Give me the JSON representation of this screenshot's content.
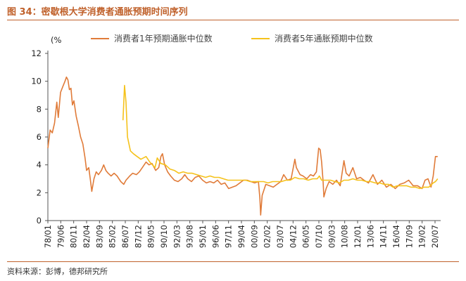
{
  "figure": {
    "title": "图 34：密歇根大学消费者通胀预期时间序列",
    "source": "资料来源：彭博，德邦研究所"
  },
  "colors": {
    "accent": "#c0612b",
    "series_1y": "#e07b39",
    "series_5y": "#f5c21b"
  },
  "chart_data": {
    "type": "line",
    "title": "",
    "ylabel": "(%",
    "ylim": [
      0,
      12
    ],
    "yticks": [
      0,
      2,
      4,
      6,
      8,
      10,
      12
    ],
    "xlim": [
      "1978-01",
      "2022-01"
    ],
    "xtick_labels": [
      "78/01",
      "79/06",
      "80/11",
      "82/04",
      "83/09",
      "85/02",
      "86/07",
      "87/12",
      "89/05",
      "90/10",
      "92/03",
      "93/08",
      "95/01",
      "96/06",
      "97/11",
      "99/04",
      "00/09",
      "02/02",
      "03/07",
      "04/12",
      "06/05",
      "07/10",
      "09/03",
      "10/08",
      "12/01",
      "13/06",
      "14/11",
      "16/04",
      "17/09",
      "19/02",
      "20/07"
    ],
    "grid": false,
    "legend_position": "top",
    "series": [
      {
        "name": "消费者1年预期通胀中位数",
        "color": "#e07b39",
        "points": [
          [
            "1978-01",
            5.2
          ],
          [
            "1978-04",
            6.5
          ],
          [
            "1978-07",
            6.3
          ],
          [
            "1978-10",
            7.0
          ],
          [
            "1979-01",
            8.5
          ],
          [
            "1979-03",
            7.4
          ],
          [
            "1979-06",
            9.2
          ],
          [
            "1979-09",
            9.6
          ],
          [
            "1979-12",
            10.0
          ],
          [
            "1980-02",
            10.3
          ],
          [
            "1980-04",
            10.1
          ],
          [
            "1980-06",
            9.4
          ],
          [
            "1980-08",
            9.5
          ],
          [
            "1980-10",
            8.3
          ],
          [
            "1980-12",
            8.6
          ],
          [
            "1981-03",
            7.5
          ],
          [
            "1981-06",
            6.8
          ],
          [
            "1981-09",
            6.0
          ],
          [
            "1981-12",
            5.5
          ],
          [
            "1982-03",
            4.5
          ],
          [
            "1982-05",
            3.6
          ],
          [
            "1982-08",
            3.8
          ],
          [
            "1982-10",
            3.0
          ],
          [
            "1982-12",
            2.1
          ],
          [
            "1983-03",
            3.0
          ],
          [
            "1983-06",
            3.5
          ],
          [
            "1983-09",
            3.3
          ],
          [
            "1984-01",
            3.6
          ],
          [
            "1984-04",
            4.0
          ],
          [
            "1984-07",
            3.6
          ],
          [
            "1984-10",
            3.4
          ],
          [
            "1985-02",
            3.2
          ],
          [
            "1985-06",
            3.4
          ],
          [
            "1985-10",
            3.2
          ],
          [
            "1986-03",
            2.8
          ],
          [
            "1986-07",
            2.6
          ],
          [
            "1986-10",
            2.9
          ],
          [
            "1987-03",
            3.2
          ],
          [
            "1987-07",
            3.4
          ],
          [
            "1987-12",
            3.3
          ],
          [
            "1988-04",
            3.5
          ],
          [
            "1988-08",
            3.8
          ],
          [
            "1989-01",
            4.2
          ],
          [
            "1989-05",
            4.0
          ],
          [
            "1989-09",
            4.1
          ],
          [
            "1990-02",
            3.6
          ],
          [
            "1990-06",
            3.8
          ],
          [
            "1990-09",
            4.6
          ],
          [
            "1990-11",
            4.8
          ],
          [
            "1991-02",
            4.0
          ],
          [
            "1991-06",
            3.5
          ],
          [
            "1991-10",
            3.2
          ],
          [
            "1992-03",
            2.9
          ],
          [
            "1992-08",
            2.8
          ],
          [
            "1993-01",
            3.0
          ],
          [
            "1993-05",
            3.3
          ],
          [
            "1993-09",
            3.0
          ],
          [
            "1994-02",
            2.8
          ],
          [
            "1994-07",
            3.1
          ],
          [
            "1994-12",
            3.2
          ],
          [
            "1995-05",
            2.9
          ],
          [
            "1995-10",
            2.7
          ],
          [
            "1996-03",
            2.8
          ],
          [
            "1996-08",
            2.7
          ],
          [
            "1997-01",
            2.9
          ],
          [
            "1997-06",
            2.6
          ],
          [
            "1997-11",
            2.7
          ],
          [
            "1998-04",
            2.3
          ],
          [
            "1998-09",
            2.4
          ],
          [
            "1999-02",
            2.5
          ],
          [
            "1999-07",
            2.7
          ],
          [
            "1999-12",
            2.9
          ],
          [
            "2000-05",
            2.9
          ],
          [
            "2000-10",
            2.8
          ],
          [
            "2001-03",
            2.7
          ],
          [
            "2001-08",
            2.8
          ],
          [
            "2001-10",
            1.6
          ],
          [
            "2001-11",
            0.4
          ],
          [
            "2002-01",
            1.8
          ],
          [
            "2002-06",
            2.6
          ],
          [
            "2002-11",
            2.5
          ],
          [
            "2003-04",
            2.4
          ],
          [
            "2003-09",
            2.6
          ],
          [
            "2004-02",
            2.8
          ],
          [
            "2004-06",
            3.3
          ],
          [
            "2004-11",
            2.9
          ],
          [
            "2005-04",
            3.0
          ],
          [
            "2005-09",
            4.4
          ],
          [
            "2005-11",
            3.8
          ],
          [
            "2006-04",
            3.3
          ],
          [
            "2006-08",
            3.2
          ],
          [
            "2007-01",
            3.0
          ],
          [
            "2007-06",
            3.3
          ],
          [
            "2007-10",
            3.2
          ],
          [
            "2008-02",
            3.5
          ],
          [
            "2008-05",
            5.2
          ],
          [
            "2008-07",
            5.1
          ],
          [
            "2008-09",
            4.2
          ],
          [
            "2008-11",
            2.8
          ],
          [
            "2008-12",
            1.7
          ],
          [
            "2009-03",
            2.3
          ],
          [
            "2009-07",
            2.8
          ],
          [
            "2009-12",
            2.6
          ],
          [
            "2010-05",
            2.9
          ],
          [
            "2010-10",
            2.5
          ],
          [
            "2011-03",
            4.3
          ],
          [
            "2011-06",
            3.4
          ],
          [
            "2011-10",
            3.2
          ],
          [
            "2012-03",
            3.8
          ],
          [
            "2012-08",
            3.0
          ],
          [
            "2013-01",
            3.1
          ],
          [
            "2013-06",
            2.9
          ],
          [
            "2013-12",
            2.7
          ],
          [
            "2014-06",
            3.3
          ],
          [
            "2014-12",
            2.6
          ],
          [
            "2015-06",
            2.9
          ],
          [
            "2015-12",
            2.4
          ],
          [
            "2016-06",
            2.6
          ],
          [
            "2016-12",
            2.3
          ],
          [
            "2017-06",
            2.6
          ],
          [
            "2017-12",
            2.7
          ],
          [
            "2018-06",
            2.9
          ],
          [
            "2018-12",
            2.5
          ],
          [
            "2019-06",
            2.5
          ],
          [
            "2019-12",
            2.3
          ],
          [
            "2020-04",
            2.9
          ],
          [
            "2020-08",
            3.0
          ],
          [
            "2020-12",
            2.4
          ],
          [
            "2021-03",
            3.2
          ],
          [
            "2021-06",
            4.6
          ],
          [
            "2021-09",
            4.6
          ]
        ]
      },
      {
        "name": "消费者5年通胀预期中位数",
        "color": "#f5c21b",
        "points": [
          [
            "1986-06",
            7.2
          ],
          [
            "1986-08",
            9.7
          ],
          [
            "1986-10",
            8.5
          ],
          [
            "1986-12",
            6.0
          ],
          [
            "1987-04",
            5.0
          ],
          [
            "1987-08",
            4.8
          ],
          [
            "1988-01",
            4.6
          ],
          [
            "1988-06",
            4.4
          ],
          [
            "1989-01",
            4.6
          ],
          [
            "1989-06",
            4.2
          ],
          [
            "1990-01",
            3.8
          ],
          [
            "1990-04",
            4.5
          ],
          [
            "1990-09",
            4.1
          ],
          [
            "1991-03",
            4.0
          ],
          [
            "1991-09",
            3.7
          ],
          [
            "1992-03",
            3.6
          ],
          [
            "1992-09",
            3.4
          ],
          [
            "1993-03",
            3.5
          ],
          [
            "1993-09",
            3.4
          ],
          [
            "1994-03",
            3.4
          ],
          [
            "1994-09",
            3.3
          ],
          [
            "1995-03",
            3.2
          ],
          [
            "1995-09",
            3.1
          ],
          [
            "1996-03",
            3.2
          ],
          [
            "1996-09",
            3.1
          ],
          [
            "1997-03",
            3.1
          ],
          [
            "1997-09",
            3.0
          ],
          [
            "1998-03",
            2.9
          ],
          [
            "1998-09",
            2.9
          ],
          [
            "1999-03",
            2.9
          ],
          [
            "1999-09",
            2.9
          ],
          [
            "2000-03",
            2.9
          ],
          [
            "2000-09",
            2.8
          ],
          [
            "2001-03",
            2.8
          ],
          [
            "2001-09",
            2.8
          ],
          [
            "2002-03",
            2.8
          ],
          [
            "2002-09",
            2.7
          ],
          [
            "2003-03",
            2.8
          ],
          [
            "2003-09",
            2.8
          ],
          [
            "2004-03",
            2.8
          ],
          [
            "2004-09",
            2.9
          ],
          [
            "2005-03",
            2.9
          ],
          [
            "2005-09",
            3.1
          ],
          [
            "2006-03",
            3.0
          ],
          [
            "2006-09",
            3.0
          ],
          [
            "2007-03",
            2.9
          ],
          [
            "2007-09",
            3.0
          ],
          [
            "2008-03",
            3.0
          ],
          [
            "2008-06",
            3.2
          ],
          [
            "2008-09",
            2.9
          ],
          [
            "2009-03",
            2.9
          ],
          [
            "2009-09",
            2.9
          ],
          [
            "2010-03",
            2.8
          ],
          [
            "2010-09",
            2.7
          ],
          [
            "2011-03",
            2.9
          ],
          [
            "2011-09",
            2.9
          ],
          [
            "2012-03",
            3.0
          ],
          [
            "2012-09",
            2.9
          ],
          [
            "2013-03",
            2.9
          ],
          [
            "2013-09",
            2.8
          ],
          [
            "2014-03",
            2.8
          ],
          [
            "2014-09",
            2.7
          ],
          [
            "2015-03",
            2.7
          ],
          [
            "2015-09",
            2.6
          ],
          [
            "2016-03",
            2.6
          ],
          [
            "2016-09",
            2.4
          ],
          [
            "2017-03",
            2.5
          ],
          [
            "2017-09",
            2.5
          ],
          [
            "2018-03",
            2.5
          ],
          [
            "2018-09",
            2.4
          ],
          [
            "2019-03",
            2.4
          ],
          [
            "2019-09",
            2.3
          ],
          [
            "2020-03",
            2.4
          ],
          [
            "2020-09",
            2.4
          ],
          [
            "2021-03",
            2.7
          ],
          [
            "2021-06",
            2.8
          ],
          [
            "2021-09",
            3.0
          ]
        ]
      }
    ]
  }
}
